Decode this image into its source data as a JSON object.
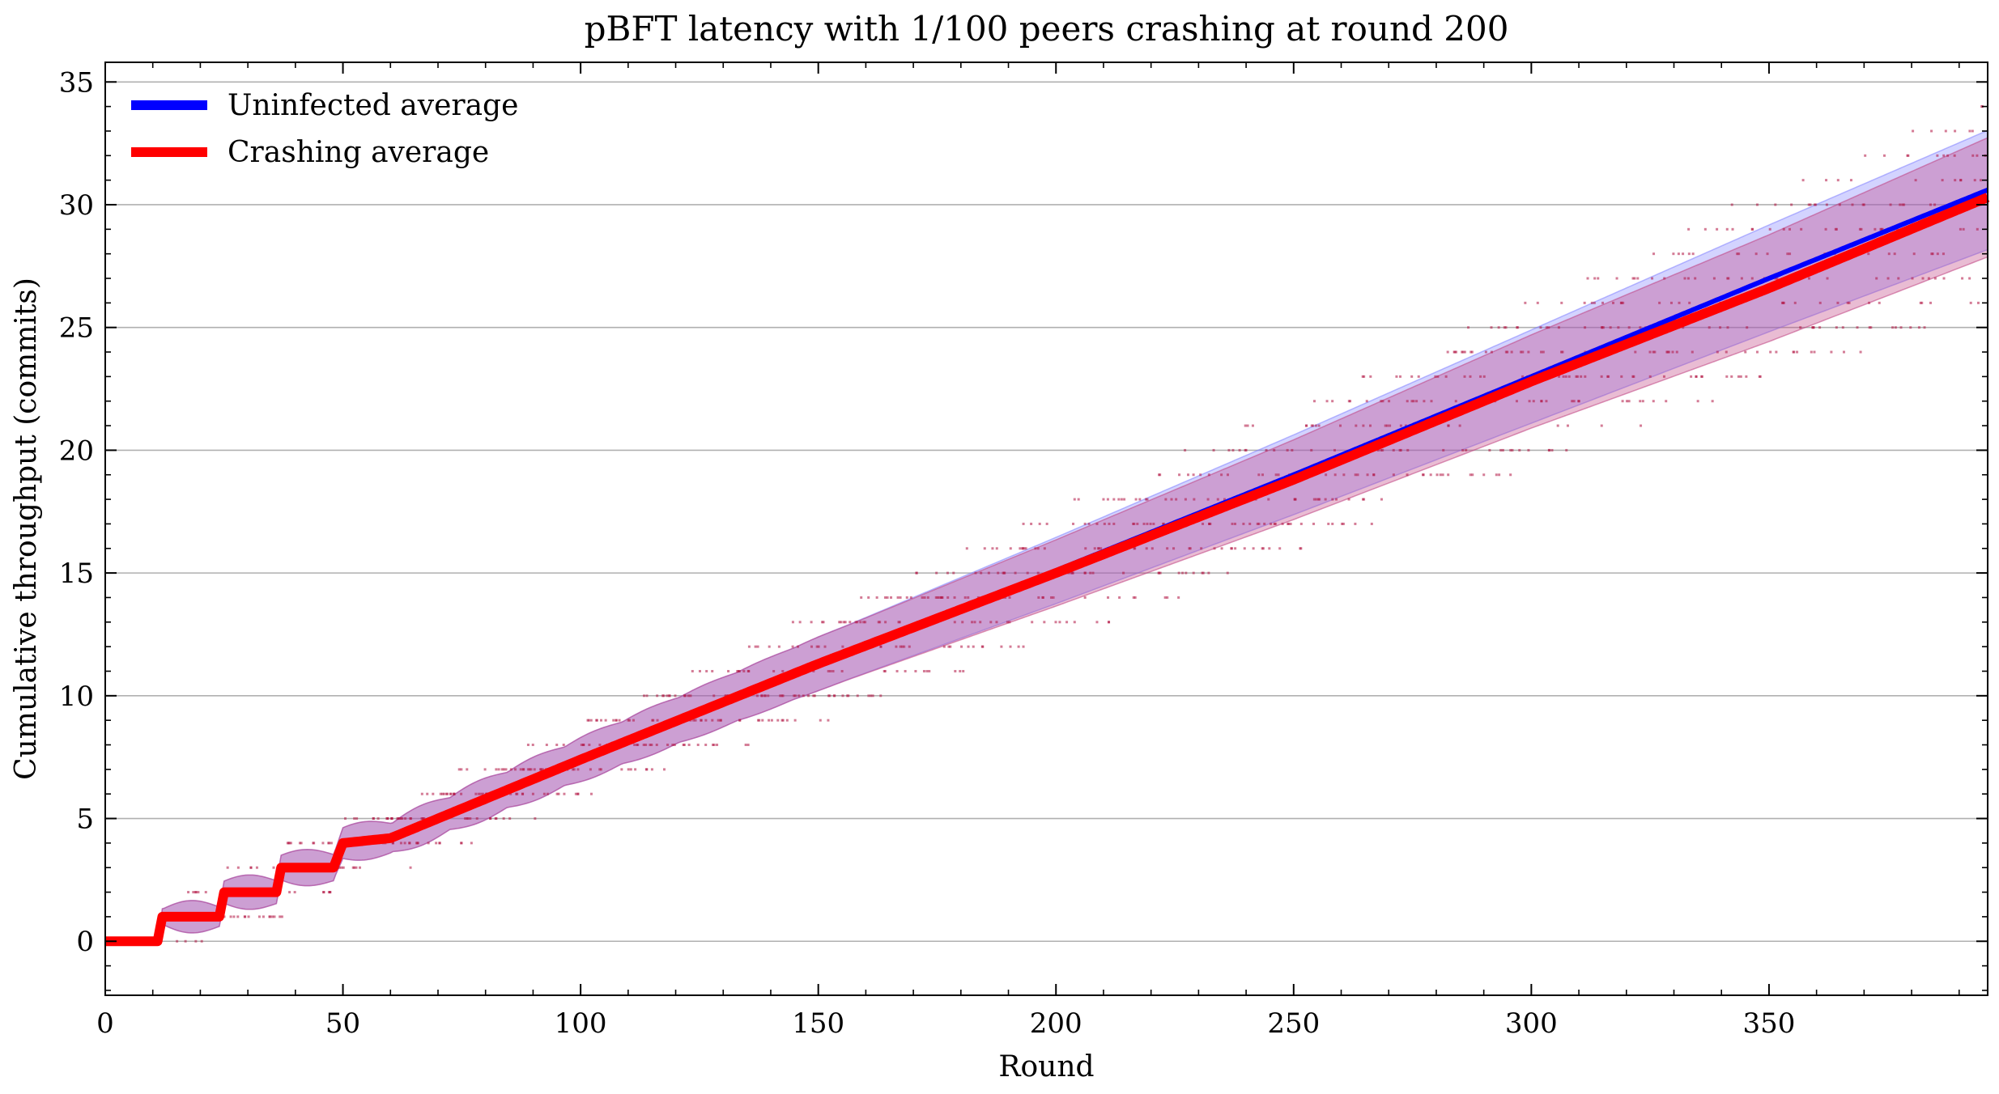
{
  "chart_data": {
    "type": "line",
    "title": "pBFT latency with 1/100 peers crashing at round 200",
    "xlabel": "Round",
    "ylabel": "Cumulative throughput (commits)",
    "xlim": [
      0,
      396
    ],
    "ylim": [
      -2.2,
      35.8
    ],
    "xticks": [
      0,
      50,
      100,
      150,
      200,
      250,
      300,
      350
    ],
    "yticks": [
      0,
      5,
      10,
      15,
      20,
      25,
      30,
      35
    ],
    "grid": "horizontal",
    "legend_position": "top-left",
    "series": [
      {
        "name": "Uninfected average",
        "color": "#0000ff",
        "band_color": "#8080ff",
        "x": [
          0,
          11,
          12,
          24,
          25,
          36,
          37,
          48,
          50,
          60,
          100,
          150,
          200,
          250,
          300,
          350,
          396
        ],
        "y": [
          0,
          0,
          1,
          1,
          2,
          2,
          3,
          3,
          4,
          4.2,
          7.4,
          11.3,
          15.1,
          19.0,
          23.0,
          27.0,
          30.6
        ]
      },
      {
        "name": "Crashing average",
        "color": "#ff0000",
        "band_color": "#c04080",
        "x": [
          0,
          11,
          12,
          24,
          25,
          36,
          37,
          48,
          50,
          60,
          100,
          150,
          200,
          250,
          300,
          350,
          396
        ],
        "y": [
          0,
          0,
          1,
          1,
          2,
          2,
          3,
          3,
          4,
          4.2,
          7.4,
          11.3,
          15.0,
          18.8,
          22.8,
          26.6,
          30.3
        ]
      }
    ]
  }
}
